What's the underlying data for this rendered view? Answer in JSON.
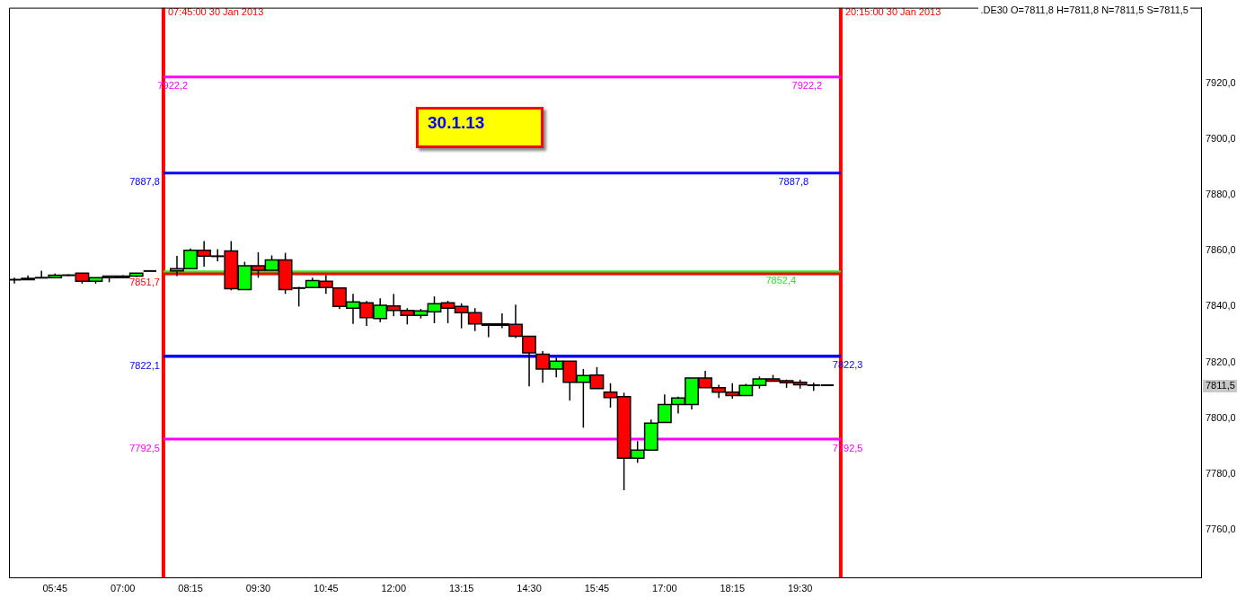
{
  "chart_data": {
    "type": "candlestick",
    "x": [
      "2013-01-30T05:00",
      "2013-01-30T05:15",
      "2013-01-30T05:30",
      "2013-01-30T05:45",
      "2013-01-30T06:00",
      "2013-01-30T06:15",
      "2013-01-30T06:30",
      "2013-01-30T06:45",
      "2013-01-30T07:00",
      "2013-01-30T07:15",
      "2013-01-30T07:30",
      "2013-01-30T08:00",
      "2013-01-30T08:15",
      "2013-01-30T08:30",
      "2013-01-30T08:45",
      "2013-01-30T09:00",
      "2013-01-30T09:15",
      "2013-01-30T09:30",
      "2013-01-30T09:45",
      "2013-01-30T10:00",
      "2013-01-30T10:15",
      "2013-01-30T10:30",
      "2013-01-30T10:45",
      "2013-01-30T11:00",
      "2013-01-30T11:15",
      "2013-01-30T11:30",
      "2013-01-30T11:45",
      "2013-01-30T12:00",
      "2013-01-30T12:15",
      "2013-01-30T12:30",
      "2013-01-30T12:45",
      "2013-01-30T13:00",
      "2013-01-30T13:15",
      "2013-01-30T13:30",
      "2013-01-30T13:45",
      "2013-01-30T14:00",
      "2013-01-30T14:15",
      "2013-01-30T14:30",
      "2013-01-30T14:45",
      "2013-01-30T15:00",
      "2013-01-30T15:15",
      "2013-01-30T15:30",
      "2013-01-30T15:45",
      "2013-01-30T16:00",
      "2013-01-30T16:15",
      "2013-01-30T16:30",
      "2013-01-30T16:45",
      "2013-01-30T17:00",
      "2013-01-30T17:15",
      "2013-01-30T17:30",
      "2013-01-30T17:45",
      "2013-01-30T18:00",
      "2013-01-30T18:15",
      "2013-01-30T18:30",
      "2013-01-30T18:45",
      "2013-01-30T19:00",
      "2013-01-30T19:15",
      "2013-01-30T19:30",
      "2013-01-30T19:45",
      "2013-01-30T20:00"
    ],
    "ohlc": [
      [
        7849.6,
        7850.3,
        7848.2,
        7849.6
      ],
      [
        7849.6,
        7851.1,
        7849.6,
        7850.1
      ],
      [
        7850.3,
        7852.8,
        7850.3,
        7850.3
      ],
      [
        7850.3,
        7851.8,
        7850.3,
        7851.2
      ],
      [
        7851.2,
        7851.5,
        7850.9,
        7851.2
      ],
      [
        7851.9,
        7851.9,
        7848.2,
        7849.0
      ],
      [
        7849.0,
        7850.3,
        7848.2,
        7850.3
      ],
      [
        7850.3,
        7850.9,
        7848.7,
        7850.9
      ],
      [
        7850.9,
        7851.2,
        7850.3,
        7850.3
      ],
      [
        7850.9,
        7851.9,
        7850.6,
        7851.9
      ],
      [
        7852.7,
        7852.7,
        7852.7,
        7852.7
      ],
      [
        7852.7,
        7858.1,
        7850.9,
        7853.5
      ],
      [
        7853.5,
        7860.8,
        7853.5,
        7860.1
      ],
      [
        7860.1,
        7863.4,
        7854.3,
        7858.0
      ],
      [
        7858.0,
        7860.5,
        7856.2,
        7858.0
      ],
      [
        7859.9,
        7863.4,
        7845.8,
        7846.4
      ],
      [
        7846.1,
        7856.0,
        7846.1,
        7854.6
      ],
      [
        7854.6,
        7859.4,
        7850.3,
        7853.0
      ],
      [
        7853.0,
        7858.3,
        7853.0,
        7856.7
      ],
      [
        7856.7,
        7859.2,
        7844.5,
        7846.1
      ],
      [
        7846.6,
        7847.0,
        7840.0,
        7846.6
      ],
      [
        7846.8,
        7850.3,
        7846.8,
        7849.3
      ],
      [
        7849.0,
        7851.2,
        7844.5,
        7846.8
      ],
      [
        7846.6,
        7846.6,
        7839.1,
        7840.0
      ],
      [
        7839.4,
        7844.5,
        7833.8,
        7841.6
      ],
      [
        7841.3,
        7842.0,
        7833.0,
        7836.0
      ],
      [
        7835.7,
        7842.9,
        7834.4,
        7840.4
      ],
      [
        7840.2,
        7844.5,
        7836.5,
        7838.6
      ],
      [
        7838.6,
        7839.4,
        7833.6,
        7836.8
      ],
      [
        7836.8,
        7839.1,
        7835.7,
        7838.4
      ],
      [
        7838.1,
        7843.6,
        7834.0,
        7841.0
      ],
      [
        7841.3,
        7842.0,
        7834.0,
        7839.4
      ],
      [
        7840.0,
        7841.1,
        7832.2,
        7837.8
      ],
      [
        7837.8,
        7839.4,
        7831.2,
        7833.8
      ],
      [
        7833.8,
        7833.8,
        7829.0,
        7833.3
      ],
      [
        7833.3,
        7837.5,
        7832.2,
        7833.8
      ],
      [
        7833.6,
        7840.7,
        7828.7,
        7829.3
      ],
      [
        7829.3,
        7829.3,
        7811.4,
        7823.4
      ],
      [
        7822.9,
        7824.0,
        7812.7,
        7817.6
      ],
      [
        7817.6,
        7821.6,
        7814.6,
        7820.4
      ],
      [
        7820.4,
        7820.4,
        7806.3,
        7812.9
      ],
      [
        7812.9,
        7817.6,
        7796.6,
        7815.3
      ],
      [
        7815.4,
        7818.3,
        7810.6,
        7810.6
      ],
      [
        7809.3,
        7812.5,
        7803.8,
        7807.4
      ],
      [
        7807.7,
        7809.1,
        7774.2,
        7785.7
      ],
      [
        7785.7,
        7791.8,
        7784.0,
        7788.6
      ],
      [
        7788.6,
        7799.5,
        7788.6,
        7798.2
      ],
      [
        7798.5,
        7808.5,
        7798.5,
        7804.9
      ],
      [
        7804.9,
        7807.7,
        7801.7,
        7807.2
      ],
      [
        7804.9,
        7814.4,
        7803.1,
        7814.4
      ],
      [
        7814.4,
        7817.0,
        7810.9,
        7810.9
      ],
      [
        7810.9,
        7812.0,
        7807.2,
        7809.3
      ],
      [
        7809.3,
        7812.5,
        7807.0,
        7808.1
      ],
      [
        7808.1,
        7812.3,
        7808.1,
        7811.7
      ],
      [
        7811.7,
        7814.9,
        7810.6,
        7814.1
      ],
      [
        7814.1,
        7815.5,
        7813.3,
        7813.3
      ],
      [
        7813.4,
        7813.8,
        7810.9,
        7812.7
      ],
      [
        7812.9,
        7813.8,
        7810.6,
        7812.0
      ],
      [
        7811.8,
        7812.7,
        7809.8,
        7811.8
      ],
      [
        7811.8,
        7811.8,
        7811.5,
        7811.5
      ]
    ],
    "colors": [
      "#000000",
      "#00ff00",
      "#000000",
      "#00ff00",
      "#000000",
      "#ff0000",
      "#00ff00",
      "#00ff00",
      "#ff0000",
      "#00ff00",
      "#000000",
      "#00ff00",
      "#00ff00",
      "#ff0000",
      "#000000",
      "#ff0000",
      "#00ff00",
      "#ff0000",
      "#00ff00",
      "#ff0000",
      "#000000",
      "#00ff00",
      "#ff0000",
      "#ff0000",
      "#00ff00",
      "#ff0000",
      "#00ff00",
      "#ff0000",
      "#ff0000",
      "#00ff00",
      "#00ff00",
      "#ff0000",
      "#ff0000",
      "#ff0000",
      "#ff0000",
      "#00ff00",
      "#ff0000",
      "#ff0000",
      "#ff0000",
      "#00ff00",
      "#ff0000",
      "#00ff00",
      "#ff0000",
      "#ff0000",
      "#ff0000",
      "#00ff00",
      "#00ff00",
      "#00ff00",
      "#00ff00",
      "#00ff00",
      "#ff0000",
      "#ff0000",
      "#ff0000",
      "#00ff00",
      "#00ff00",
      "#ff0000",
      "#ff0000",
      "#ff0000",
      "#000000",
      "#000000"
    ],
    "xlim": [
      "2013-01-30T04:54",
      "2013-01-31T02:54"
    ],
    "ylim": [
      7743,
      7947
    ],
    "xticks": [
      {
        "value": "2013-01-30T05:45",
        "label": "05:45"
      },
      {
        "value": "2013-01-30T07:00",
        "label": "07:00"
      },
      {
        "value": "2013-01-30T08:15",
        "label": "08:15"
      },
      {
        "value": "2013-01-30T09:30",
        "label": "09:30"
      },
      {
        "value": "2013-01-30T10:45",
        "label": "10:45"
      },
      {
        "value": "2013-01-30T12:00",
        "label": "12:00"
      },
      {
        "value": "2013-01-30T13:15",
        "label": "13:15"
      },
      {
        "value": "2013-01-30T14:30",
        "label": "14:30"
      },
      {
        "value": "2013-01-30T15:45",
        "label": "15:45"
      },
      {
        "value": "2013-01-30T17:00",
        "label": "17:00"
      },
      {
        "value": "2013-01-30T18:15",
        "label": "18:15"
      },
      {
        "value": "2013-01-30T19:30",
        "label": "19:30"
      }
    ],
    "yticks": [
      {
        "value": 7760,
        "label": "7760,0"
      },
      {
        "value": 7780,
        "label": "7780,0"
      },
      {
        "value": 7800,
        "label": "7800,0"
      },
      {
        "value": 7820,
        "label": "7820,0"
      },
      {
        "value": 7840,
        "label": "7840,0"
      },
      {
        "value": 7860,
        "label": "7860,0"
      },
      {
        "value": 7880,
        "label": "7880,0"
      },
      {
        "value": 7900,
        "label": "7900,0"
      },
      {
        "value": 7920,
        "label": "7920,0"
      }
    ],
    "grid": false,
    "legend": false,
    "ref_lines": [
      {
        "axis": "x",
        "value": "2013-01-30T07:45",
        "label": "07:45:00 30 Jan 2013",
        "color": "#ff0000"
      },
      {
        "axis": "x",
        "value": "2013-01-30T20:15",
        "label": "20:15:00 30 Jan 2013",
        "color": "#ff0000"
      },
      {
        "axis": "y",
        "value": 7922.2,
        "color": "#ff00ff"
      },
      {
        "axis": "y",
        "value": 7887.8,
        "color": "#0000ff"
      },
      {
        "axis": "y",
        "value": 7852.4,
        "color": "#22ee22"
      },
      {
        "axis": "y",
        "value": 7851.7,
        "color": "#ff0000"
      },
      {
        "axis": "y",
        "value": 7822.1,
        "color": "#0000ff"
      },
      {
        "axis": "y",
        "value": 7822.3,
        "color": "#0000ff"
      },
      {
        "axis": "y",
        "value": 7792.5,
        "color": "#ff00ff"
      }
    ],
    "annotations": [
      "30.1.13",
      ".DE30 O=7811,8 H=7811,8 N=7811,5 S=7811,5",
      {
        "text": "7922,2",
        "x": "2013-01-30T08:16",
        "y": 7922.2
      },
      {
        "text": "7922,2",
        "x": "2013-01-30T19:17",
        "y": 7922.2
      },
      {
        "text": "7887,8",
        "x": "2013-01-30T07:45",
        "y": 7887.8
      },
      {
        "text": "7887,8",
        "x": "2013-01-30T19:02",
        "y": 7887.8
      },
      {
        "text": "7852,4",
        "x": "2013-01-30T18:48",
        "y": 7852.4
      },
      {
        "text": "7851,7",
        "x": "2013-01-30T07:45",
        "y": 7851.7
      },
      {
        "text": "7822,1",
        "x": "2013-01-30T07:45",
        "y": 7822.1
      },
      {
        "text": "7822,3",
        "x": "2013-01-30T20:02",
        "y": 7822.3
      },
      {
        "text": "7792,5",
        "x": "2013-01-30T07:45",
        "y": 7792.5
      },
      {
        "text": "7792,5",
        "x": "2013-01-30T20:02",
        "y": 7792.5
      },
      {
        "text": "7811,5",
        "y": 7811.5
      }
    ]
  }
}
